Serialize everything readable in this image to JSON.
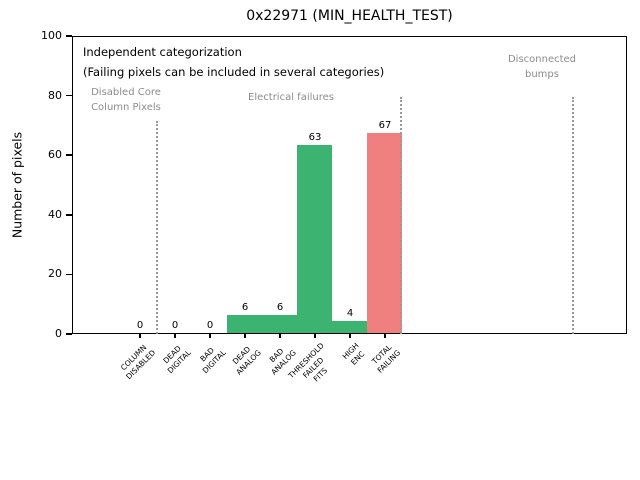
{
  "title": "0x22971 (MIN_HEALTH_TEST)",
  "chart_data": {
    "type": "bar",
    "title": "0x22971 (MIN_HEALTH_TEST)",
    "xlabel": "",
    "ylabel": "Number of pixels",
    "ylim": [
      0,
      100
    ],
    "yticks": [
      0,
      20,
      40,
      60,
      80,
      100
    ],
    "grid": false,
    "legend": false,
    "categories": [
      "COLUMN DISABLED",
      "DEAD DIGITAL",
      "BAD DIGITAL",
      "DEAD ANALOG",
      "BAD ANALOG",
      "THRESHOLD FAILED FITS",
      "HIGH ENC",
      "TOTAL FAILING"
    ],
    "category_lines": [
      [
        "COLUMN",
        "DISABLED"
      ],
      [
        "DEAD",
        "DIGITAL"
      ],
      [
        "BAD",
        "DIGITAL"
      ],
      [
        "DEAD",
        "ANALOG"
      ],
      [
        "BAD",
        "ANALOG"
      ],
      [
        "THRESHOLD",
        "FAILED",
        "FITS"
      ],
      [
        "HIGH",
        "ENC"
      ],
      [
        "TOTAL",
        "FAILING"
      ]
    ],
    "values": [
      0,
      0,
      0,
      6,
      6,
      63,
      4,
      67
    ],
    "value_labels": [
      "0",
      "0",
      "0",
      "6",
      "6",
      "63",
      "4",
      "67"
    ],
    "bar_colors": [
      "#3cb371",
      "#3cb371",
      "#3cb371",
      "#3cb371",
      "#3cb371",
      "#3cb371",
      "#3cb371",
      "#f08080"
    ],
    "separator_color": "#999999",
    "annotations": {
      "independent": {
        "text": "Independent categorization",
        "color": "#000000"
      },
      "failing_note": {
        "text": "(Failing pixels can be included in several categories)",
        "color": "#000000"
      },
      "disabled_core": {
        "lines": [
          "Disabled Core",
          "Column Pixels"
        ],
        "color": "#8c8c8c"
      },
      "electrical": {
        "text": "Electrical failures",
        "color": "#8c8c8c"
      },
      "disconnected": {
        "lines": [
          "Disconnected",
          "bumps"
        ],
        "color": "#8c8c8c"
      }
    }
  }
}
